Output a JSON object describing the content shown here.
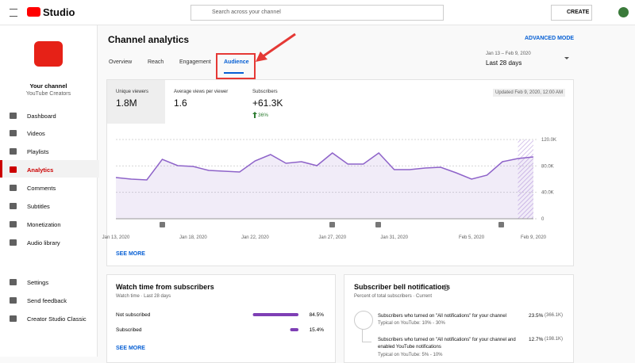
{
  "header": {
    "logo": "Studio",
    "search": "Search across your channel",
    "create": "CREATE"
  },
  "sidebar": {
    "channel_name": "Your channel",
    "channel_sub": "YouTube Creators",
    "items": [
      "Dashboard",
      "Videos",
      "Playlists",
      "Analytics",
      "Comments",
      "Subtitles",
      "Monetization",
      "Audio library"
    ],
    "footer_items": [
      "Settings",
      "Send feedback",
      "Creator Studio Classic"
    ]
  },
  "page": {
    "title": "Channel analytics",
    "tabs": [
      "Overview",
      "Reach",
      "Engagement",
      "Audience"
    ],
    "advanced": "ADVANCED MODE",
    "date_range": "Jan 13 – Feb 9, 2020",
    "period": "Last 28 days"
  },
  "metrics": {
    "cards": [
      {
        "label": "Unique viewers",
        "value": "1.8M"
      },
      {
        "label": "Average views per viewer",
        "value": "1.6"
      },
      {
        "label": "Subscribers",
        "value": "+61.3K",
        "change": "36%"
      }
    ],
    "updated": "Updated Feb 9, 2020, 12:00 AM",
    "see_more": "SEE MORE"
  },
  "chart_data": {
    "type": "line",
    "color": "#8e63c9",
    "categories": [
      "Jan 13, 2020",
      null,
      null,
      null,
      null,
      "Jan 18, 2020",
      null,
      null,
      null,
      "Jan 22, 2020",
      null,
      null,
      null,
      null,
      "Jan 27, 2020",
      null,
      null,
      null,
      "Jan 31, 2020",
      null,
      null,
      null,
      null,
      "Feb 5, 2020",
      null,
      null,
      null,
      "Feb 9, 2020"
    ],
    "values": [
      62400,
      60000,
      58800,
      90000,
      80400,
      79200,
      73200,
      72000,
      70800,
      87600,
      97200,
      84000,
      86400,
      80400,
      99600,
      82800,
      82800,
      99600,
      74400,
      74400,
      76800,
      78000,
      69600,
      60000,
      66000,
      86400,
      91200,
      93600
    ],
    "ylim": [
      0,
      120000
    ],
    "yticks": [
      0,
      {
        "value": 40000,
        "label": "40.0K"
      },
      {
        "value": 80000,
        "label": "80.0K"
      },
      {
        "value": 120000,
        "label": "120.0K"
      }
    ],
    "grid": true
  },
  "watch_time": {
    "title": "Watch time from subscribers",
    "subtitle": "Watch time · Last 28 days",
    "categories": [
      "Not subscribed",
      "Subscribed"
    ],
    "values": [
      84.5,
      15.4
    ],
    "value_labels": [
      "84.5%",
      "15.4%"
    ],
    "color": "#7e3fb5",
    "see_more": "SEE MORE"
  },
  "bell": {
    "title": "Subscriber bell notifications",
    "subtitle": "Percent of total subscribers · Current",
    "items": [
      {
        "text": "Subscribers who turned on \"All notifications\" for your channel",
        "typical": "Typical on YouTube: 10% - 30%",
        "percent": "23.5%",
        "count": "(366.1K)"
      },
      {
        "text": "Subscribers who turned on \"All notifications\" for your channel and enabled YouTube notifications",
        "typical": "Typical on YouTube: 5% - 10%",
        "percent": "12.7%",
        "count": "(198.1K)"
      }
    ]
  }
}
